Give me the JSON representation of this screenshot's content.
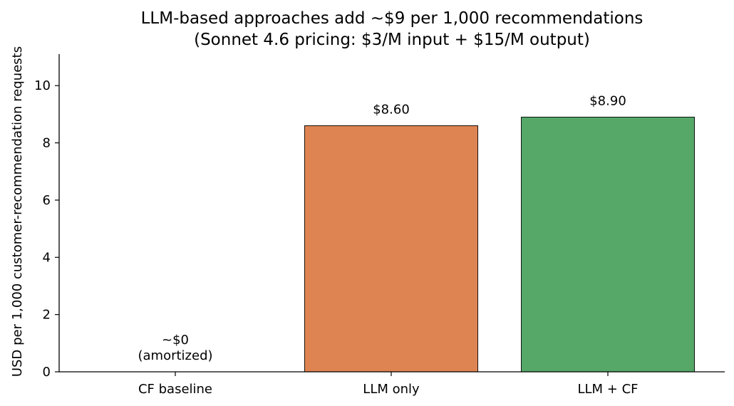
{
  "chart_data": {
    "type": "bar",
    "title_lines": [
      "LLM-based approaches add ~$9 per 1,000 recommendations",
      "(Sonnet 4.6 pricing: $3/M input + $15/M output)"
    ],
    "xlabel": "",
    "ylabel": "USD per 1,000 customer-recommendation requests",
    "categories": [
      "CF baseline",
      "LLM only",
      "LLM + CF"
    ],
    "values": [
      0,
      8.6,
      8.9
    ],
    "bar_colors": [
      "#1f77b4",
      "#dd8452",
      "#55a868"
    ],
    "data_labels": [
      [
        "~$0",
        "(amortized)"
      ],
      [
        "$8.60"
      ],
      [
        "$8.90"
      ]
    ],
    "ylim": [
      0,
      11.1
    ],
    "yticks": [
      0,
      2,
      4,
      6,
      8,
      10
    ],
    "grid": false,
    "legend": "none"
  }
}
